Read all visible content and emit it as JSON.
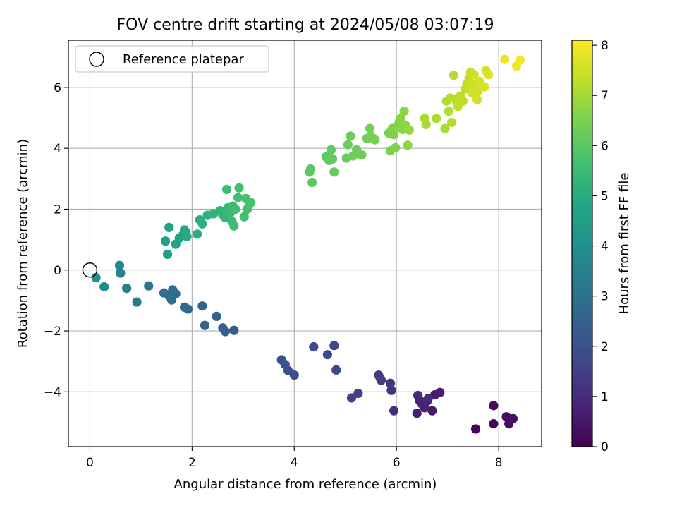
{
  "chart_data": {
    "type": "scatter",
    "title": "FOV centre drift starting at 2024/05/08 03:07:19",
    "xlabel": "Angular distance from reference (arcmin)",
    "ylabel": "Rotation from reference (arcmin)",
    "xlim": [
      -0.42,
      8.84
    ],
    "ylim": [
      -5.8,
      7.55
    ],
    "xticks": [
      "0",
      "2",
      "4",
      "6",
      "8"
    ],
    "xtick_values": [
      0,
      2,
      4,
      6,
      8
    ],
    "yticks": [
      "−4",
      "−2",
      "0",
      "2",
      "4",
      "6"
    ],
    "ytick_values": [
      -4,
      -2,
      0,
      2,
      4,
      6
    ],
    "grid": true,
    "legend": {
      "position": "top-left",
      "label": "Reference platepar"
    },
    "reference_point": {
      "x": 0,
      "y": 0
    },
    "colorbar": {
      "label": "Hours from first FF file",
      "colormap": "viridis",
      "range": [
        0,
        8.1
      ],
      "ticks": [
        "0",
        "1",
        "2",
        "3",
        "4",
        "5",
        "6",
        "7",
        "8"
      ],
      "tick_values": [
        0,
        1,
        2,
        3,
        4,
        5,
        6,
        7,
        8
      ]
    },
    "points": [
      {
        "x": 7.55,
        "y": -5.22,
        "t": 0.1
      },
      {
        "x": 7.9,
        "y": -5.05,
        "t": 0.15
      },
      {
        "x": 7.9,
        "y": -4.45,
        "t": 0.2
      },
      {
        "x": 8.15,
        "y": -4.82,
        "t": 0.25
      },
      {
        "x": 8.2,
        "y": -5.05,
        "t": 0.3
      },
      {
        "x": 8.28,
        "y": -4.88,
        "t": 0.35
      },
      {
        "x": 6.6,
        "y": -4.3,
        "t": 0.5
      },
      {
        "x": 6.7,
        "y": -4.62,
        "t": 0.55
      },
      {
        "x": 6.75,
        "y": -4.1,
        "t": 0.6
      },
      {
        "x": 6.85,
        "y": -4.02,
        "t": 0.65
      },
      {
        "x": 6.4,
        "y": -4.7,
        "t": 0.7
      },
      {
        "x": 6.45,
        "y": -4.28,
        "t": 0.75
      },
      {
        "x": 6.5,
        "y": -4.4,
        "t": 0.8
      },
      {
        "x": 6.55,
        "y": -4.52,
        "t": 0.85
      },
      {
        "x": 6.42,
        "y": -4.12,
        "t": 0.9
      },
      {
        "x": 6.62,
        "y": -4.22,
        "t": 1.0
      },
      {
        "x": 5.95,
        "y": -4.62,
        "t": 1.1
      },
      {
        "x": 5.9,
        "y": -3.95,
        "t": 1.2
      },
      {
        "x": 5.88,
        "y": -3.72,
        "t": 1.3
      },
      {
        "x": 5.7,
        "y": -3.62,
        "t": 1.35
      },
      {
        "x": 5.65,
        "y": -3.45,
        "t": 1.4
      },
      {
        "x": 5.68,
        "y": -3.55,
        "t": 1.45
      },
      {
        "x": 5.25,
        "y": -4.05,
        "t": 1.5
      },
      {
        "x": 5.12,
        "y": -4.2,
        "t": 1.6
      },
      {
        "x": 4.82,
        "y": -3.28,
        "t": 1.7
      },
      {
        "x": 4.78,
        "y": -2.48,
        "t": 1.75
      },
      {
        "x": 4.65,
        "y": -2.78,
        "t": 1.8
      },
      {
        "x": 4.38,
        "y": -2.52,
        "t": 1.85
      },
      {
        "x": 4.0,
        "y": -3.45,
        "t": 1.9
      },
      {
        "x": 3.88,
        "y": -3.3,
        "t": 2.0
      },
      {
        "x": 3.82,
        "y": -3.1,
        "t": 2.05
      },
      {
        "x": 3.75,
        "y": -2.95,
        "t": 2.1
      },
      {
        "x": 2.82,
        "y": -1.98,
        "t": 2.4
      },
      {
        "x": 2.65,
        "y": -2.02,
        "t": 2.45
      },
      {
        "x": 2.6,
        "y": -1.9,
        "t": 2.5
      },
      {
        "x": 2.48,
        "y": -1.52,
        "t": 2.55
      },
      {
        "x": 2.25,
        "y": -1.82,
        "t": 2.6
      },
      {
        "x": 2.2,
        "y": -1.18,
        "t": 2.65
      },
      {
        "x": 1.92,
        "y": -1.28,
        "t": 2.7
      },
      {
        "x": 1.85,
        "y": -1.22,
        "t": 2.75
      },
      {
        "x": 1.68,
        "y": -0.78,
        "t": 2.8
      },
      {
        "x": 1.6,
        "y": -0.98,
        "t": 2.85
      },
      {
        "x": 1.62,
        "y": -0.65,
        "t": 2.9
      },
      {
        "x": 1.55,
        "y": -0.85,
        "t": 2.95
      },
      {
        "x": 1.45,
        "y": -0.75,
        "t": 3.0
      },
      {
        "x": 1.15,
        "y": -0.52,
        "t": 3.2
      },
      {
        "x": 0.92,
        "y": -1.05,
        "t": 3.3
      },
      {
        "x": 0.72,
        "y": -0.6,
        "t": 3.4
      },
      {
        "x": 0.6,
        "y": -0.1,
        "t": 3.6
      },
      {
        "x": 0.58,
        "y": 0.15,
        "t": 3.7
      },
      {
        "x": 0.28,
        "y": -0.55,
        "t": 3.8
      },
      {
        "x": 0.12,
        "y": -0.25,
        "t": 3.9
      },
      {
        "x": 1.52,
        "y": 0.52,
        "t": 4.5
      },
      {
        "x": 1.48,
        "y": 0.95,
        "t": 4.55
      },
      {
        "x": 1.55,
        "y": 1.4,
        "t": 4.6
      },
      {
        "x": 1.68,
        "y": 0.85,
        "t": 4.65
      },
      {
        "x": 1.75,
        "y": 1.05,
        "t": 4.7
      },
      {
        "x": 1.82,
        "y": 1.15,
        "t": 4.75
      },
      {
        "x": 1.85,
        "y": 1.32,
        "t": 4.8
      },
      {
        "x": 1.88,
        "y": 1.25,
        "t": 4.85
      },
      {
        "x": 1.9,
        "y": 1.1,
        "t": 4.9
      },
      {
        "x": 2.1,
        "y": 1.18,
        "t": 5.0
      },
      {
        "x": 2.15,
        "y": 1.65,
        "t": 5.05
      },
      {
        "x": 2.2,
        "y": 1.52,
        "t": 5.1
      },
      {
        "x": 2.3,
        "y": 1.8,
        "t": 5.15
      },
      {
        "x": 2.42,
        "y": 1.85,
        "t": 5.2
      },
      {
        "x": 2.55,
        "y": 1.95,
        "t": 5.25
      },
      {
        "x": 2.6,
        "y": 1.82,
        "t": 5.3
      },
      {
        "x": 2.65,
        "y": 1.72,
        "t": 5.35
      },
      {
        "x": 2.7,
        "y": 2.05,
        "t": 5.4
      },
      {
        "x": 2.68,
        "y": 2.65,
        "t": 5.45
      },
      {
        "x": 2.75,
        "y": 1.88,
        "t": 5.5
      },
      {
        "x": 2.78,
        "y": 1.6,
        "t": 5.52
      },
      {
        "x": 2.8,
        "y": 2.1,
        "t": 5.55
      },
      {
        "x": 2.82,
        "y": 1.45,
        "t": 5.58
      },
      {
        "x": 2.85,
        "y": 2.0,
        "t": 5.6
      },
      {
        "x": 2.9,
        "y": 2.38,
        "t": 5.62
      },
      {
        "x": 2.92,
        "y": 2.7,
        "t": 5.65
      },
      {
        "x": 3.02,
        "y": 1.75,
        "t": 5.68
      },
      {
        "x": 3.05,
        "y": 2.35,
        "t": 5.7
      },
      {
        "x": 3.08,
        "y": 2.0,
        "t": 5.72
      },
      {
        "x": 3.12,
        "y": 2.15,
        "t": 5.75
      },
      {
        "x": 3.15,
        "y": 2.22,
        "t": 5.78
      },
      {
        "x": 4.3,
        "y": 3.22,
        "t": 6.0
      },
      {
        "x": 4.32,
        "y": 3.32,
        "t": 6.02
      },
      {
        "x": 4.35,
        "y": 2.88,
        "t": 6.05
      },
      {
        "x": 4.62,
        "y": 3.72,
        "t": 6.08
      },
      {
        "x": 4.68,
        "y": 3.6,
        "t": 6.1
      },
      {
        "x": 4.72,
        "y": 3.95,
        "t": 6.12
      },
      {
        "x": 4.75,
        "y": 3.65,
        "t": 6.15
      },
      {
        "x": 4.78,
        "y": 3.22,
        "t": 6.18
      },
      {
        "x": 5.02,
        "y": 3.68,
        "t": 6.2
      },
      {
        "x": 5.05,
        "y": 4.12,
        "t": 6.22
      },
      {
        "x": 5.1,
        "y": 4.4,
        "t": 6.25
      },
      {
        "x": 5.15,
        "y": 3.75,
        "t": 6.28
      },
      {
        "x": 5.22,
        "y": 3.95,
        "t": 6.3
      },
      {
        "x": 5.32,
        "y": 3.78,
        "t": 6.32
      },
      {
        "x": 5.42,
        "y": 4.32,
        "t": 6.35
      },
      {
        "x": 5.48,
        "y": 4.65,
        "t": 6.38
      },
      {
        "x": 5.5,
        "y": 4.4,
        "t": 6.4
      },
      {
        "x": 5.52,
        "y": 4.35,
        "t": 6.42
      },
      {
        "x": 5.58,
        "y": 4.28,
        "t": 6.45
      },
      {
        "x": 5.85,
        "y": 4.5,
        "t": 6.48
      },
      {
        "x": 5.88,
        "y": 3.92,
        "t": 6.5
      },
      {
        "x": 5.92,
        "y": 4.65,
        "t": 6.52
      },
      {
        "x": 5.95,
        "y": 4.45,
        "t": 6.55
      },
      {
        "x": 5.98,
        "y": 4.02,
        "t": 6.58
      },
      {
        "x": 6.02,
        "y": 4.72,
        "t": 6.6
      },
      {
        "x": 6.05,
        "y": 4.85,
        "t": 6.62
      },
      {
        "x": 6.08,
        "y": 4.98,
        "t": 6.65
      },
      {
        "x": 6.12,
        "y": 4.62,
        "t": 6.68
      },
      {
        "x": 6.15,
        "y": 5.22,
        "t": 6.7
      },
      {
        "x": 6.18,
        "y": 4.75,
        "t": 6.72
      },
      {
        "x": 6.22,
        "y": 4.1,
        "t": 6.75
      },
      {
        "x": 6.25,
        "y": 4.6,
        "t": 6.78
      },
      {
        "x": 6.55,
        "y": 4.98,
        "t": 7.0
      },
      {
        "x": 6.58,
        "y": 4.78,
        "t": 7.02
      },
      {
        "x": 6.78,
        "y": 4.98,
        "t": 7.05
      },
      {
        "x": 6.95,
        "y": 4.65,
        "t": 7.08
      },
      {
        "x": 6.98,
        "y": 5.55,
        "t": 7.1
      },
      {
        "x": 7.02,
        "y": 5.22,
        "t": 7.12
      },
      {
        "x": 7.05,
        "y": 5.65,
        "t": 7.15
      },
      {
        "x": 7.08,
        "y": 4.85,
        "t": 7.18
      },
      {
        "x": 7.12,
        "y": 6.4,
        "t": 7.2
      },
      {
        "x": 7.15,
        "y": 5.62,
        "t": 7.22
      },
      {
        "x": 7.18,
        "y": 5.5,
        "t": 7.25
      },
      {
        "x": 7.2,
        "y": 5.38,
        "t": 7.28
      },
      {
        "x": 7.25,
        "y": 5.72,
        "t": 7.3
      },
      {
        "x": 7.3,
        "y": 5.55,
        "t": 7.32
      },
      {
        "x": 7.35,
        "y": 5.95,
        "t": 7.35
      },
      {
        "x": 7.38,
        "y": 6.12,
        "t": 7.38
      },
      {
        "x": 7.42,
        "y": 6.3,
        "t": 7.4
      },
      {
        "x": 7.45,
        "y": 6.5,
        "t": 7.42
      },
      {
        "x": 7.48,
        "y": 5.82,
        "t": 7.45
      },
      {
        "x": 7.5,
        "y": 6.1,
        "t": 7.48
      },
      {
        "x": 7.52,
        "y": 6.42,
        "t": 7.5
      },
      {
        "x": 7.55,
        "y": 5.75,
        "t": 7.52
      },
      {
        "x": 7.58,
        "y": 5.6,
        "t": 7.55
      },
      {
        "x": 7.6,
        "y": 5.9,
        "t": 7.58
      },
      {
        "x": 7.62,
        "y": 6.2,
        "t": 7.6
      },
      {
        "x": 7.72,
        "y": 6.02,
        "t": 7.62
      },
      {
        "x": 7.75,
        "y": 6.55,
        "t": 7.65
      },
      {
        "x": 7.8,
        "y": 6.42,
        "t": 7.68
      },
      {
        "x": 8.12,
        "y": 6.92,
        "t": 7.9
      },
      {
        "x": 8.35,
        "y": 6.7,
        "t": 7.95
      },
      {
        "x": 8.42,
        "y": 6.9,
        "t": 8.0
      }
    ]
  }
}
